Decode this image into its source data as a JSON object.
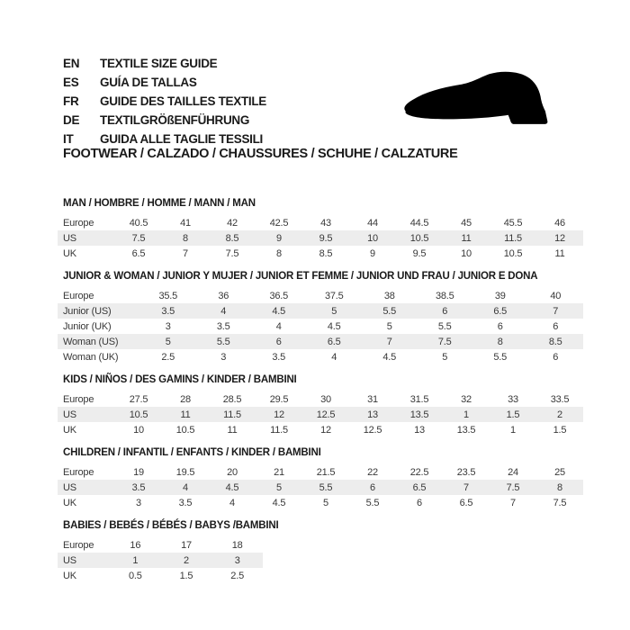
{
  "header": {
    "languages": [
      {
        "code": "EN",
        "label": "TEXTILE SIZE GUIDE"
      },
      {
        "code": "ES",
        "label": "GUÍA DE TALLAS"
      },
      {
        "code": "FR",
        "label": "GUIDE DES TAILLES TEXTILE"
      },
      {
        "code": "DE",
        "label": "TEXTILGRÖßENFÜHRUNG"
      },
      {
        "code": "IT",
        "label": "GUIDA ALLE TAGLIE TESSILI"
      }
    ],
    "category_line": "FOOTWEAR / CALZADO / CHAUSSURES / SCHUHE / CALZATURE",
    "shoe_icon": "dress-shoe-silhouette"
  },
  "colors": {
    "header_row_bg": "#c6c6c6",
    "stripe_row_bg": "#ededed",
    "cell_text": "#383838",
    "title_text": "#1a1a1a",
    "shoe_fill": "#000000",
    "page_bg": "#ffffff"
  },
  "size_tables": [
    {
      "key": "man",
      "title": "MAN / HOMBRE / HOMME / MANN / MAN",
      "rows": [
        {
          "label": "Europe",
          "values": [
            "40.5",
            "41",
            "42",
            "42.5",
            "43",
            "44",
            "44.5",
            "45",
            "45.5",
            "46"
          ]
        },
        {
          "label": "US",
          "values": [
            "7.5",
            "8",
            "8.5",
            "9",
            "9.5",
            "10",
            "10.5",
            "11",
            "11.5",
            "12"
          ]
        },
        {
          "label": "UK",
          "values": [
            "6.5",
            "7",
            "7.5",
            "8",
            "8.5",
            "9",
            "9.5",
            "10",
            "10.5",
            "11"
          ]
        }
      ]
    },
    {
      "key": "junior_woman",
      "title": "JUNIOR & WOMAN / JUNIOR Y MUJER / JUNIOR ET FEMME / JUNIOR UND FRAU / JUNIOR E DONA",
      "rows": [
        {
          "label": "Europe",
          "values": [
            "35.5",
            "36",
            "36.5",
            "37.5",
            "38",
            "38.5",
            "39",
            "40"
          ]
        },
        {
          "label": "Junior (US)",
          "values": [
            "3.5",
            "4",
            "4.5",
            "5",
            "5.5",
            "6",
            "6.5",
            "7"
          ]
        },
        {
          "label": "Junior (UK)",
          "values": [
            "3",
            "3.5",
            "4",
            "4.5",
            "5",
            "5.5",
            "6",
            "6"
          ]
        },
        {
          "label": "Woman (US)",
          "values": [
            "5",
            "5.5",
            "6",
            "6.5",
            "7",
            "7.5",
            "8",
            "8.5"
          ]
        },
        {
          "label": "Woman (UK)",
          "values": [
            "2.5",
            "3",
            "3.5",
            "4",
            "4.5",
            "5",
            "5.5",
            "6"
          ]
        }
      ]
    },
    {
      "key": "kids",
      "title": "KIDS / NIÑOS / DES GAMINS / KINDER / BAMBINI",
      "rows": [
        {
          "label": "Europe",
          "values": [
            "27.5",
            "28",
            "28.5",
            "29.5",
            "30",
            "31",
            "31.5",
            "32",
            "33",
            "33.5"
          ]
        },
        {
          "label": "US",
          "values": [
            "10.5",
            "11",
            "11.5",
            "12",
            "12.5",
            "13",
            "13.5",
            "1",
            "1.5",
            "2"
          ]
        },
        {
          "label": "UK",
          "values": [
            "10",
            "10.5",
            "11",
            "11.5",
            "12",
            "12.5",
            "13",
            "13.5",
            "1",
            "1.5"
          ]
        }
      ]
    },
    {
      "key": "children",
      "title": "CHILDREN / INFANTIL / ENFANTS / KINDER / BAMBINI",
      "rows": [
        {
          "label": "Europe",
          "values": [
            "19",
            "19.5",
            "20",
            "21",
            "21.5",
            "22",
            "22.5",
            "23.5",
            "24",
            "25"
          ]
        },
        {
          "label": "US",
          "values": [
            "3.5",
            "4",
            "4.5",
            "5",
            "5.5",
            "6",
            "6.5",
            "7",
            "7.5",
            "8"
          ]
        },
        {
          "label": "UK",
          "values": [
            "3",
            "3.5",
            "4",
            "4.5",
            "5",
            "5.5",
            "6",
            "6.5",
            "7",
            "7.5"
          ]
        }
      ]
    },
    {
      "key": "babies",
      "title": "BABIES / BEBÉS / BÉBÉS / BABYS /BAMBINI",
      "rows": [
        {
          "label": "Europe",
          "values": [
            "16",
            "17",
            "18"
          ]
        },
        {
          "label": "US",
          "values": [
            "1",
            "2",
            "3"
          ]
        },
        {
          "label": "UK",
          "values": [
            "0.5",
            "1.5",
            "2.5"
          ]
        }
      ]
    }
  ]
}
